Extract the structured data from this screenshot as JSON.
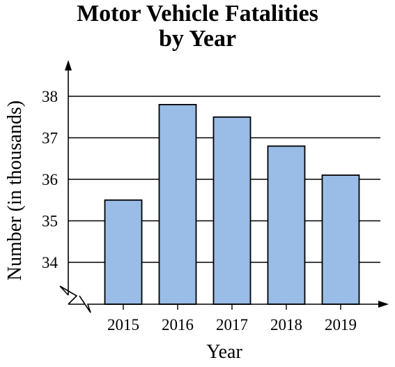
{
  "chart_data": {
    "type": "bar",
    "title_lines": [
      "Motor Vehicle Fatalities",
      "by Year"
    ],
    "xlabel": "Year",
    "ylabel": "Number (in thousands)",
    "categories": [
      "2015",
      "2016",
      "2017",
      "2018",
      "2019"
    ],
    "values": [
      35.5,
      37.8,
      37.5,
      36.8,
      36.1
    ],
    "y_ticks": [
      34,
      35,
      36,
      37,
      38
    ],
    "ylim": [
      33,
      38.6
    ],
    "axis_break": true,
    "grid": true,
    "colors": {
      "bar": "#99bde6",
      "outline": "#000000"
    }
  }
}
